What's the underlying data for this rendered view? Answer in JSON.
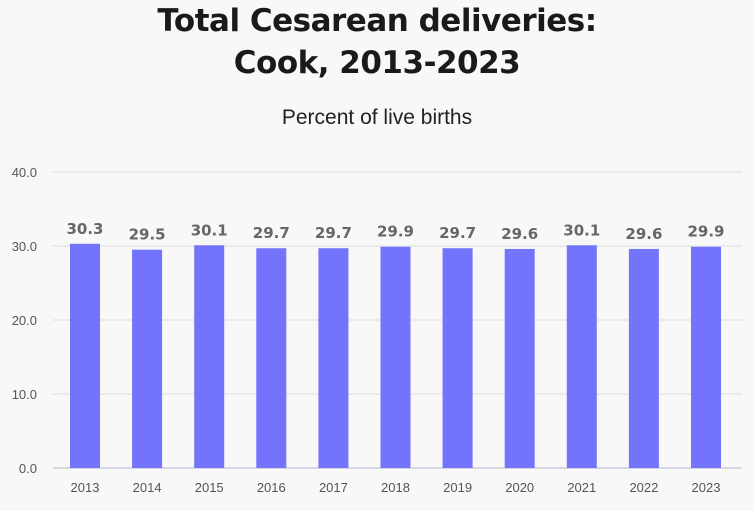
{
  "chart_data": {
    "type": "bar",
    "title": [
      "Total Cesarean deliveries:",
      "Cook, 2013-2023"
    ],
    "subtitle": "Percent of live births",
    "categories": [
      "2013",
      "2014",
      "2015",
      "2016",
      "2017",
      "2018",
      "2019",
      "2020",
      "2021",
      "2022",
      "2023"
    ],
    "values": [
      30.3,
      29.5,
      30.1,
      29.7,
      29.7,
      29.9,
      29.7,
      29.6,
      30.1,
      29.6,
      29.9
    ],
    "data_labels": [
      "30.3",
      "29.5",
      "30.1",
      "29.7",
      "29.7",
      "29.9",
      "29.7",
      "29.6",
      "30.1",
      "29.6",
      "29.9"
    ],
    "yticks": [
      "0.0",
      "10.0",
      "20.0",
      "30.0",
      "40.0"
    ],
    "ylim": [
      0,
      40
    ],
    "grid": true,
    "colors": {
      "bar": "#7373fb",
      "label": "#666666",
      "grid": "#e6e6e6",
      "axis": "#ccccdd"
    }
  }
}
